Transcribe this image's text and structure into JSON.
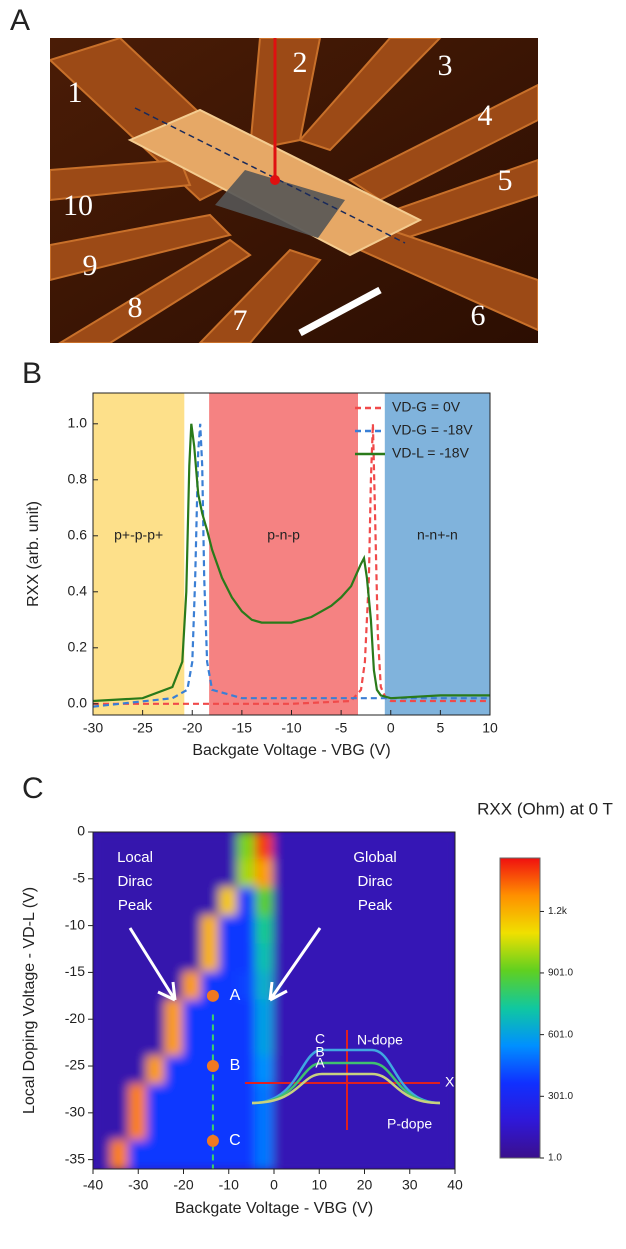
{
  "panel_a": {
    "label": "A",
    "electrodes": [
      "1",
      "2",
      "3",
      "4",
      "5",
      "6",
      "7",
      "8",
      "9",
      "10"
    ]
  },
  "chart_data": [
    {
      "type": "line",
      "label": "B",
      "xlabel": "Backgate Voltage - VBG (V)",
      "ylabel": "RXX (arb. unit)",
      "xlim": [
        -30,
        10
      ],
      "xticks": [
        -30,
        -25,
        -20,
        -15,
        -10,
        -5,
        0,
        5,
        10
      ],
      "ylim": [
        -0.04,
        1.11
      ],
      "yticks": [
        {
          "value": 0,
          "label": "0.0"
        },
        0.2,
        0.4,
        0.6,
        0.8,
        {
          "value": 1,
          "label": "1.0"
        }
      ],
      "regions": [
        {
          "label": "p+-p-p+",
          "xlim": [
            -30,
            -20.8
          ],
          "color": "#fde08a"
        },
        {
          "label": "p-n-p",
          "xlim": [
            -18.3,
            -3.3
          ],
          "color": "#f58282"
        },
        {
          "label": "n-n+-n",
          "xlim": [
            -0.6,
            10
          ],
          "color": "#80b3dc"
        }
      ],
      "legend": "upper right",
      "series": [
        {
          "name": "VD-G = 0V",
          "color": "#f04a4a",
          "dashed": true,
          "x": [
            -30,
            -10,
            -4,
            -3,
            -2.6,
            -2.2,
            -2,
            -1.8,
            -1.6,
            -1.3,
            -1,
            -0.5,
            0,
            10
          ],
          "values": [
            0,
            0,
            0.01,
            0.05,
            0.15,
            0.45,
            0.8,
            1.0,
            0.7,
            0.25,
            0.06,
            0.02,
            0.01,
            0.01
          ]
        },
        {
          "name": "VD-G = -18V",
          "color": "#3a7fd5",
          "dashed": true,
          "x": [
            -30,
            -22,
            -20.5,
            -20,
            -19.7,
            -19.4,
            -19.2,
            -19,
            -18.8,
            -18.5,
            -18,
            -15,
            0,
            10
          ],
          "values": [
            -0.01,
            0.02,
            0.05,
            0.15,
            0.45,
            0.9,
            1.0,
            0.85,
            0.45,
            0.15,
            0.05,
            0.02,
            0.02,
            0.02
          ]
        },
        {
          "name": "VD-L = -18V",
          "color": "#2a7a1a",
          "dashed": false,
          "x": [
            -30,
            -25,
            -22,
            -21,
            -20.6,
            -20.3,
            -20.1,
            -19.8,
            -19.4,
            -19,
            -18.5,
            -18,
            -17,
            -16,
            -15,
            -14,
            -13,
            -12,
            -11,
            -10,
            -9,
            -8,
            -7,
            -6,
            -5,
            -4,
            -3.5,
            -3,
            -2.7,
            -2.4,
            -2,
            -1.7,
            -1.4,
            -1,
            0,
            5,
            10
          ],
          "values": [
            0.01,
            0.02,
            0.06,
            0.15,
            0.4,
            0.85,
            1.0,
            0.92,
            0.75,
            0.68,
            0.62,
            0.55,
            0.45,
            0.38,
            0.33,
            0.3,
            0.29,
            0.29,
            0.29,
            0.29,
            0.3,
            0.31,
            0.33,
            0.35,
            0.38,
            0.42,
            0.46,
            0.5,
            0.52,
            0.45,
            0.3,
            0.12,
            0.05,
            0.03,
            0.02,
            0.03,
            0.03
          ]
        }
      ]
    },
    {
      "type": "heatmap",
      "label": "C",
      "xlabel": "Backgate Voltage - VBG (V)",
      "ylabel": "Local Doping Voltage - VD-L (V)",
      "xlim": [
        -40,
        40
      ],
      "xticks": [
        -40,
        -30,
        -20,
        -10,
        0,
        10,
        20,
        30,
        40
      ],
      "ylim": [
        -36,
        0
      ],
      "yticks": [
        0,
        -5,
        -10,
        -15,
        -20,
        -25,
        -30,
        -35
      ],
      "colorbar_title": "RXX (Ohm) at 0 T",
      "zlim": [
        1,
        1460
      ],
      "zticks": [
        {
          "value": 1,
          "label": "1.0"
        },
        {
          "value": 301,
          "label": "301.0"
        },
        {
          "value": 601,
          "label": "601.0"
        },
        {
          "value": 901,
          "label": "901.0"
        },
        {
          "value": 1200,
          "label": "1.2k"
        }
      ],
      "colormap": [
        "#3b0f8c",
        "#2f18d8",
        "#1030ff",
        "#0090ff",
        "#10c8a0",
        "#60d020",
        "#f0e000",
        "#ff9000",
        "#f01010"
      ],
      "x": [
        -38,
        -34,
        -30,
        -26,
        -22,
        -18,
        -14,
        -10,
        -6,
        -2,
        2,
        6,
        10,
        14,
        18,
        22,
        26,
        30,
        34,
        38
      ],
      "y": [
        -1.5,
        -4.5,
        -7.5,
        -10.5,
        -13.5,
        -16.5,
        -19.5,
        -22.5,
        -25.5,
        -28.5,
        -31.5,
        -34.5
      ],
      "z": [
        [
          80,
          80,
          80,
          80,
          80,
          80,
          80,
          80,
          950,
          1400,
          100,
          100,
          100,
          100,
          100,
          100,
          100,
          100,
          100,
          100
        ],
        [
          80,
          80,
          80,
          80,
          80,
          80,
          80,
          80,
          1000,
          1250,
          100,
          100,
          100,
          100,
          100,
          100,
          100,
          100,
          100,
          100
        ],
        [
          80,
          80,
          80,
          80,
          80,
          80,
          80,
          1150,
          380,
          900,
          100,
          100,
          100,
          100,
          100,
          100,
          100,
          100,
          100,
          100
        ],
        [
          80,
          80,
          80,
          80,
          80,
          80,
          1200,
          380,
          380,
          750,
          100,
          100,
          100,
          100,
          100,
          100,
          100,
          100,
          100,
          100
        ],
        [
          80,
          80,
          80,
          80,
          80,
          80,
          1200,
          380,
          380,
          700,
          100,
          100,
          100,
          100,
          100,
          100,
          100,
          100,
          100,
          100
        ],
        [
          80,
          80,
          80,
          80,
          80,
          1250,
          380,
          380,
          400,
          650,
          100,
          100,
          100,
          100,
          100,
          100,
          100,
          100,
          100,
          100
        ],
        [
          80,
          80,
          80,
          80,
          1250,
          380,
          380,
          380,
          380,
          600,
          100,
          100,
          100,
          100,
          100,
          100,
          100,
          100,
          100,
          100
        ],
        [
          80,
          80,
          80,
          80,
          1250,
          380,
          380,
          380,
          380,
          600,
          100,
          100,
          100,
          100,
          100,
          100,
          100,
          100,
          100,
          100
        ],
        [
          80,
          80,
          80,
          1250,
          380,
          380,
          380,
          380,
          380,
          550,
          100,
          100,
          100,
          100,
          100,
          100,
          100,
          100,
          100,
          100
        ],
        [
          80,
          80,
          1300,
          380,
          380,
          380,
          380,
          380,
          380,
          500,
          100,
          100,
          100,
          100,
          100,
          100,
          100,
          100,
          100,
          100
        ],
        [
          80,
          80,
          1300,
          380,
          380,
          380,
          380,
          380,
          380,
          500,
          100,
          100,
          100,
          100,
          100,
          100,
          100,
          100,
          100,
          100
        ],
        [
          80,
          1300,
          380,
          380,
          380,
          380,
          380,
          380,
          380,
          500,
          100,
          100,
          100,
          100,
          100,
          100,
          100,
          100,
          100,
          100
        ]
      ],
      "local_peak_label": [
        "Local",
        "Dirac",
        "Peak"
      ],
      "global_peak_label": [
        "Global",
        "Dirac",
        "Peak"
      ],
      "guide_x": -13.5,
      "points": {
        "x": [
          -13.5,
          -13.5,
          -13.5
        ],
        "y": [
          -17.5,
          -25,
          -33
        ],
        "labels": [
          "A",
          "B",
          "C"
        ],
        "color": "#f07820"
      },
      "inset": {
        "curve_labels": [
          "C",
          "B",
          "A"
        ],
        "top": "N-dope",
        "bottom": "P-dope",
        "axis": "X"
      }
    }
  ]
}
